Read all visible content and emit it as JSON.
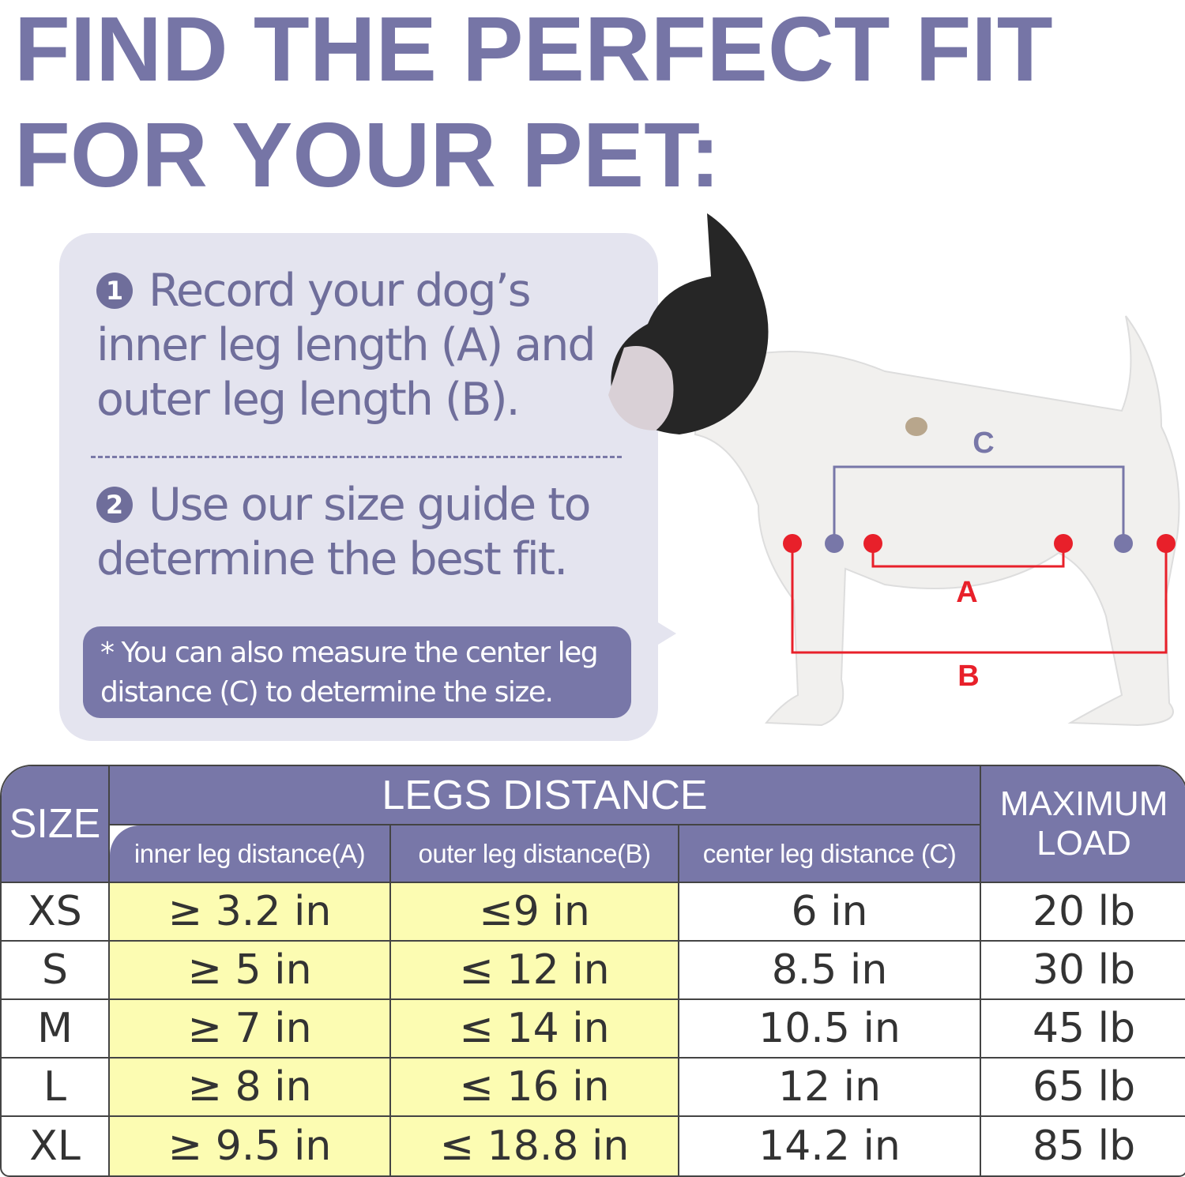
{
  "title": {
    "line1": "FIND THE PERFECT FIT",
    "line2": "FOR YOUR PET:"
  },
  "steps": [
    {
      "number": "1",
      "text": "Record your dog’s inner leg length (A) and outer leg length (B)."
    },
    {
      "number": "2",
      "text": "Use our size guide to determine the best fit."
    }
  ],
  "note": "* You can also measure the center leg distance (C) to determine the size.",
  "diagram": {
    "label_a": "A",
    "label_b": "B",
    "label_c": "C",
    "color_ab": "#e8202a",
    "color_c": "#7877a8"
  },
  "table": {
    "size_header": "SIZE",
    "group_header": "LEGS DISTANCE",
    "columns": [
      "inner leg distance(A)",
      "outer leg distance(B)",
      "center leg distance (C)"
    ],
    "load_header": "MAXIMUM LOAD",
    "rows": [
      {
        "size": "XS",
        "a": "≥ 3.2 in",
        "b": "≤9 in",
        "c": "6 in",
        "load": "20 lb"
      },
      {
        "size": "S",
        "a": "≥ 5 in",
        "b": "≤ 12 in",
        "c": "8.5 in",
        "load": "30 lb"
      },
      {
        "size": "M",
        "a": "≥ 7 in",
        "b": "≤ 14 in",
        "c": "10.5 in",
        "load": "45 lb"
      },
      {
        "size": "L",
        "a": "≥ 8 in",
        "b": "≤ 16 in",
        "c": "12 in",
        "load": "65 lb"
      },
      {
        "size": "XL",
        "a": "≥ 9.5 in",
        "b": "≤ 18.8 in",
        "c": "14.2 in",
        "load": "85 lb"
      }
    ]
  },
  "colors": {
    "accent": "#7877a8",
    "highlight": "#fcfcb2",
    "title": "#7675a6"
  }
}
